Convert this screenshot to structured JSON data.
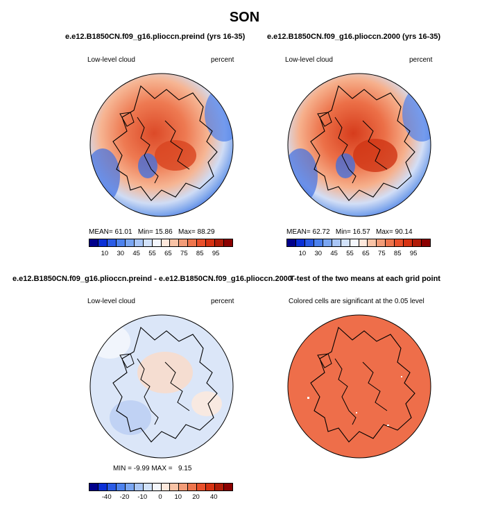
{
  "title": "SON",
  "panels": {
    "top_left": {
      "case": "e.e12.B1850CN.f09_g16.plioccn.preind (yrs 16-35)",
      "variable": "Low-level cloud",
      "units": "percent",
      "stats": {
        "mean_label": "MEAN=",
        "mean": "61.01",
        "min_label": "Min=",
        "min": "15.86",
        "max_label": "Max=",
        "max": "88.29"
      }
    },
    "top_right": {
      "case": "e.e12.B1850CN.f09_g16.plioccn.2000 (yrs 16-35)",
      "variable": "Low-level cloud",
      "units": "percent",
      "stats": {
        "mean_label": "MEAN=",
        "mean": "62.72",
        "min_label": "Min=",
        "min": "16.57",
        "max_label": "Max=",
        "max": "90.14"
      }
    },
    "bottom_left": {
      "case": "e.e12.B1850CN.f09_g16.plioccn.preind - e.e12.B1850CN.f09_g16.plioccn.2000",
      "variable": "Low-level cloud",
      "units": "percent",
      "stats": {
        "min_label": "MIN =",
        "min": "-9.99",
        "max_label": "MAX =",
        "max": "9.15"
      }
    },
    "bottom_right": {
      "title": "T-test of the two means at each grid point",
      "subtitle": "Colored cells are significant at the 0.05 level"
    }
  },
  "colorbars": {
    "abs": {
      "labels": [
        "10",
        "30",
        "45",
        "55",
        "65",
        "75",
        "85",
        "95"
      ],
      "colors": [
        "#00008b",
        "#0a2fd6",
        "#2a5be6",
        "#4d82ee",
        "#7aa6f2",
        "#a9c6f6",
        "#d2e2fa",
        "#f4f7fd",
        "#fde8dc",
        "#f8c3a6",
        "#f29c78",
        "#ee754d",
        "#e9502b",
        "#d63212",
        "#b11c08",
        "#8b0000"
      ]
    },
    "diff": {
      "labels": [
        "-40",
        "-20",
        "-10",
        "0",
        "10",
        "20",
        "40"
      ],
      "colors": [
        "#00008b",
        "#0a2fd6",
        "#2a5be6",
        "#4d82ee",
        "#7aa6f2",
        "#a9c6f6",
        "#d2e2fa",
        "#f4f7fd",
        "#fde8dc",
        "#f8c3a6",
        "#f29c78",
        "#ee754d",
        "#e9502b",
        "#d63212",
        "#b11c08",
        "#8b0000"
      ]
    }
  },
  "colors": {
    "ttest_fill": "#ee6e4a",
    "diff_base": "#dbe6f8"
  }
}
